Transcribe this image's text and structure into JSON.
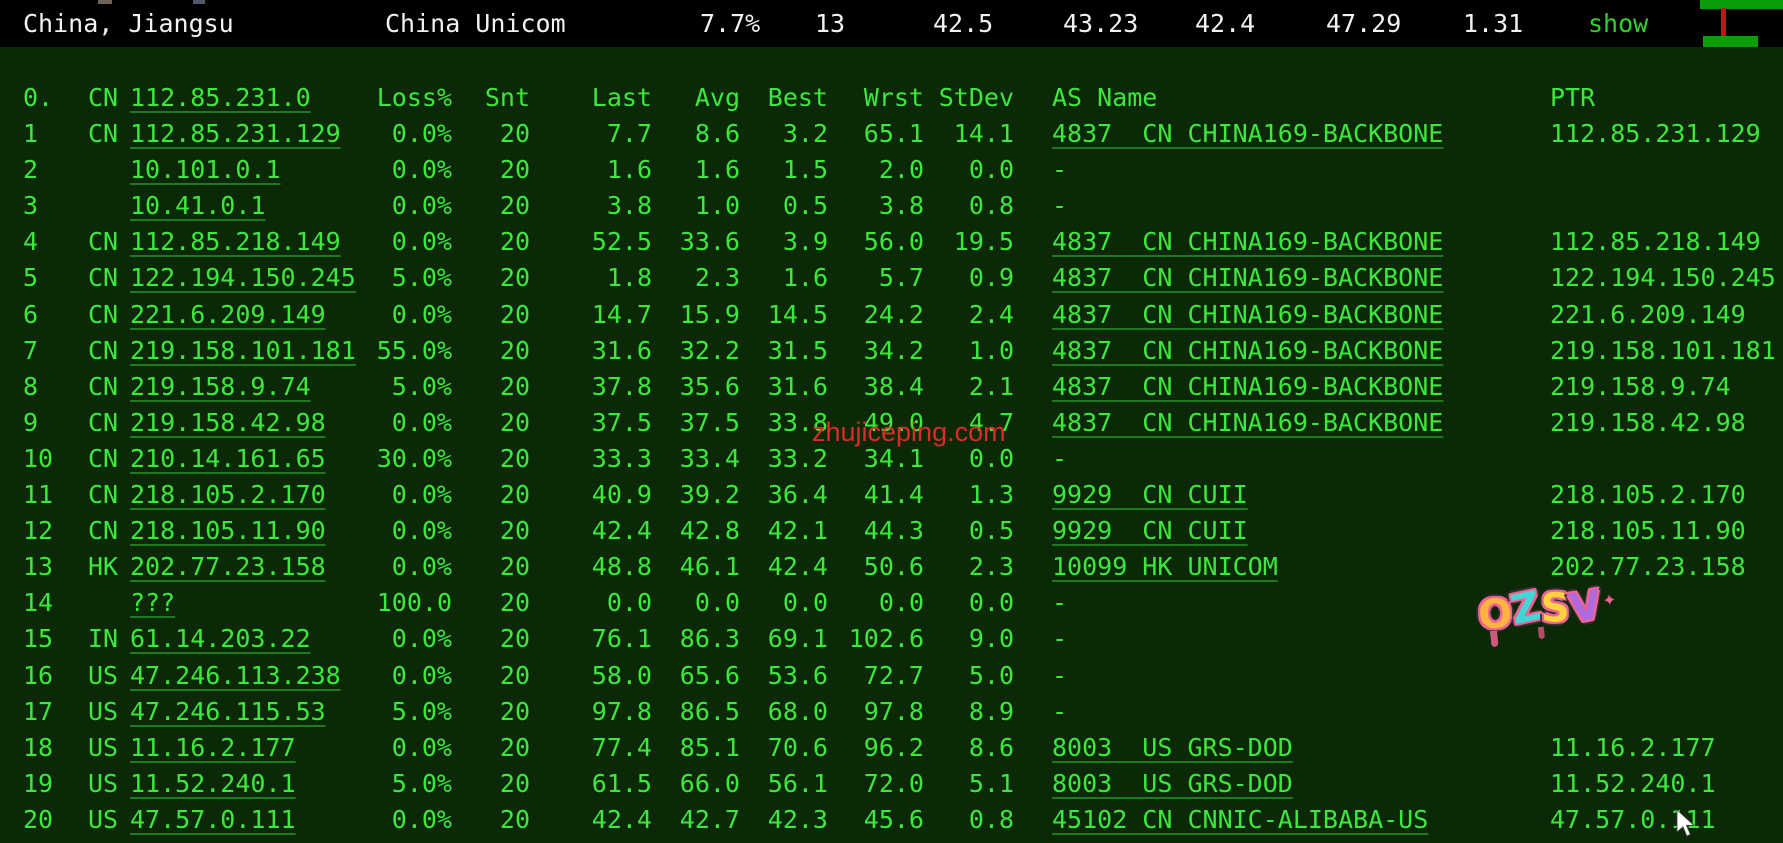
{
  "summary": {
    "location": "China, Jiangsu",
    "isp": "China Unicom",
    "loss": "7.7%",
    "snt": "13",
    "last": "42.5",
    "avg": "43.23",
    "best": "42.4",
    "wrst": "47.29",
    "stdev": "1.31",
    "show_label": "show"
  },
  "table": {
    "header": {
      "hop": "0.",
      "cc": "CN",
      "ip": "112.85.231.0",
      "loss": "Loss%",
      "snt": "Snt",
      "last": "Last",
      "avg": "Avg",
      "best": "Best",
      "wrst": "Wrst",
      "stdev": "StDev",
      "as_name": "AS Name",
      "ptr": "PTR"
    },
    "rows": [
      {
        "hop": "1",
        "cc": "CN",
        "ip": "112.85.231.129",
        "loss": "0.0%",
        "snt": "20",
        "last": "7.7",
        "avg": "8.6",
        "best": "3.2",
        "wrst": "65.1",
        "stdev": "14.1",
        "as_name": "4837  CN CHINA169-BACKBONE",
        "ptr": "112.85.231.129"
      },
      {
        "hop": "2",
        "cc": "",
        "ip": "10.101.0.1",
        "loss": "0.0%",
        "snt": "20",
        "last": "1.6",
        "avg": "1.6",
        "best": "1.5",
        "wrst": "2.0",
        "stdev": "0.0",
        "as_name": "-",
        "ptr": ""
      },
      {
        "hop": "3",
        "cc": "",
        "ip": "10.41.0.1",
        "loss": "0.0%",
        "snt": "20",
        "last": "3.8",
        "avg": "1.0",
        "best": "0.5",
        "wrst": "3.8",
        "stdev": "0.8",
        "as_name": "-",
        "ptr": ""
      },
      {
        "hop": "4",
        "cc": "CN",
        "ip": "112.85.218.149",
        "loss": "0.0%",
        "snt": "20",
        "last": "52.5",
        "avg": "33.6",
        "best": "3.9",
        "wrst": "56.0",
        "stdev": "19.5",
        "as_name": "4837  CN CHINA169-BACKBONE",
        "ptr": "112.85.218.149"
      },
      {
        "hop": "5",
        "cc": "CN",
        "ip": "122.194.150.245",
        "loss": "5.0%",
        "snt": "20",
        "last": "1.8",
        "avg": "2.3",
        "best": "1.6",
        "wrst": "5.7",
        "stdev": "0.9",
        "as_name": "4837  CN CHINA169-BACKBONE",
        "ptr": "122.194.150.245"
      },
      {
        "hop": "6",
        "cc": "CN",
        "ip": "221.6.209.149",
        "loss": "0.0%",
        "snt": "20",
        "last": "14.7",
        "avg": "15.9",
        "best": "14.5",
        "wrst": "24.2",
        "stdev": "2.4",
        "as_name": "4837  CN CHINA169-BACKBONE",
        "ptr": "221.6.209.149"
      },
      {
        "hop": "7",
        "cc": "CN",
        "ip": "219.158.101.181",
        "loss": "55.0%",
        "snt": "20",
        "last": "31.6",
        "avg": "32.2",
        "best": "31.5",
        "wrst": "34.2",
        "stdev": "1.0",
        "as_name": "4837  CN CHINA169-BACKBONE",
        "ptr": "219.158.101.181"
      },
      {
        "hop": "8",
        "cc": "CN",
        "ip": "219.158.9.74",
        "loss": "5.0%",
        "snt": "20",
        "last": "37.8",
        "avg": "35.6",
        "best": "31.6",
        "wrst": "38.4",
        "stdev": "2.1",
        "as_name": "4837  CN CHINA169-BACKBONE",
        "ptr": "219.158.9.74"
      },
      {
        "hop": "9",
        "cc": "CN",
        "ip": "219.158.42.98",
        "loss": "0.0%",
        "snt": "20",
        "last": "37.5",
        "avg": "37.5",
        "best": "33.8",
        "wrst": "49.0",
        "stdev": "4.7",
        "as_name": "4837  CN CHINA169-BACKBONE",
        "ptr": "219.158.42.98"
      },
      {
        "hop": "10",
        "cc": "CN",
        "ip": "210.14.161.65",
        "loss": "30.0%",
        "snt": "20",
        "last": "33.3",
        "avg": "33.4",
        "best": "33.2",
        "wrst": "34.1",
        "stdev": "0.0",
        "as_name": "-",
        "ptr": ""
      },
      {
        "hop": "11",
        "cc": "CN",
        "ip": "218.105.2.170",
        "loss": "0.0%",
        "snt": "20",
        "last": "40.9",
        "avg": "39.2",
        "best": "36.4",
        "wrst": "41.4",
        "stdev": "1.3",
        "as_name": "9929  CN CUII",
        "ptr": "218.105.2.170"
      },
      {
        "hop": "12",
        "cc": "CN",
        "ip": "218.105.11.90",
        "loss": "0.0%",
        "snt": "20",
        "last": "42.4",
        "avg": "42.8",
        "best": "42.1",
        "wrst": "44.3",
        "stdev": "0.5",
        "as_name": "9929  CN CUII",
        "ptr": "218.105.11.90"
      },
      {
        "hop": "13",
        "cc": "HK",
        "ip": "202.77.23.158",
        "loss": "0.0%",
        "snt": "20",
        "last": "48.8",
        "avg": "46.1",
        "best": "42.4",
        "wrst": "50.6",
        "stdev": "2.3",
        "as_name": "10099 HK UNICOM",
        "ptr": "202.77.23.158"
      },
      {
        "hop": "14",
        "cc": "",
        "ip": "???",
        "loss": "100.0",
        "snt": "20",
        "last": "0.0",
        "avg": "0.0",
        "best": "0.0",
        "wrst": "0.0",
        "stdev": "0.0",
        "as_name": "-",
        "ptr": ""
      },
      {
        "hop": "15",
        "cc": "IN",
        "ip": "61.14.203.22",
        "loss": "0.0%",
        "snt": "20",
        "last": "76.1",
        "avg": "86.3",
        "best": "69.1",
        "wrst": "102.6",
        "stdev": "9.0",
        "as_name": "-",
        "ptr": ""
      },
      {
        "hop": "16",
        "cc": "US",
        "ip": "47.246.113.238",
        "loss": "0.0%",
        "snt": "20",
        "last": "58.0",
        "avg": "65.6",
        "best": "53.6",
        "wrst": "72.7",
        "stdev": "5.0",
        "as_name": "-",
        "ptr": ""
      },
      {
        "hop": "17",
        "cc": "US",
        "ip": "47.246.115.53",
        "loss": "5.0%",
        "snt": "20",
        "last": "97.8",
        "avg": "86.5",
        "best": "68.0",
        "wrst": "97.8",
        "stdev": "8.9",
        "as_name": "-",
        "ptr": ""
      },
      {
        "hop": "18",
        "cc": "US",
        "ip": "11.16.2.177",
        "loss": "0.0%",
        "snt": "20",
        "last": "77.4",
        "avg": "85.1",
        "best": "70.6",
        "wrst": "96.2",
        "stdev": "8.6",
        "as_name": "8003  US GRS-DOD",
        "ptr": "11.16.2.177"
      },
      {
        "hop": "19",
        "cc": "US",
        "ip": "11.52.240.1",
        "loss": "5.0%",
        "snt": "20",
        "last": "61.5",
        "avg": "66.0",
        "best": "56.1",
        "wrst": "72.0",
        "stdev": "5.1",
        "as_name": "8003  US GRS-DOD",
        "ptr": "11.52.240.1"
      },
      {
        "hop": "20",
        "cc": "US",
        "ip": "47.57.0.111",
        "loss": "0.0%",
        "snt": "20",
        "last": "42.4",
        "avg": "42.7",
        "best": "42.3",
        "wrst": "45.6",
        "stdev": "0.8",
        "as_name": "45102 CN CNNIC-ALIBABA-US",
        "ptr": "47.57.0.111"
      }
    ]
  },
  "watermarks": {
    "red_text": "zhujiceping.com",
    "graffiti": "OZSV",
    "sparkle": "✦"
  },
  "colors": {
    "background": "#0c2907",
    "text_green": "#3ce83c",
    "topbar_bg": "#000000",
    "topbar_text": "#f2f2f2",
    "show_link_green": "#2fd32f",
    "link_underline": "#1f7a1f",
    "watermark_red": "#ee2b2b",
    "spark_green": "#0a9e0a",
    "spark_red": "#cc1111"
  }
}
